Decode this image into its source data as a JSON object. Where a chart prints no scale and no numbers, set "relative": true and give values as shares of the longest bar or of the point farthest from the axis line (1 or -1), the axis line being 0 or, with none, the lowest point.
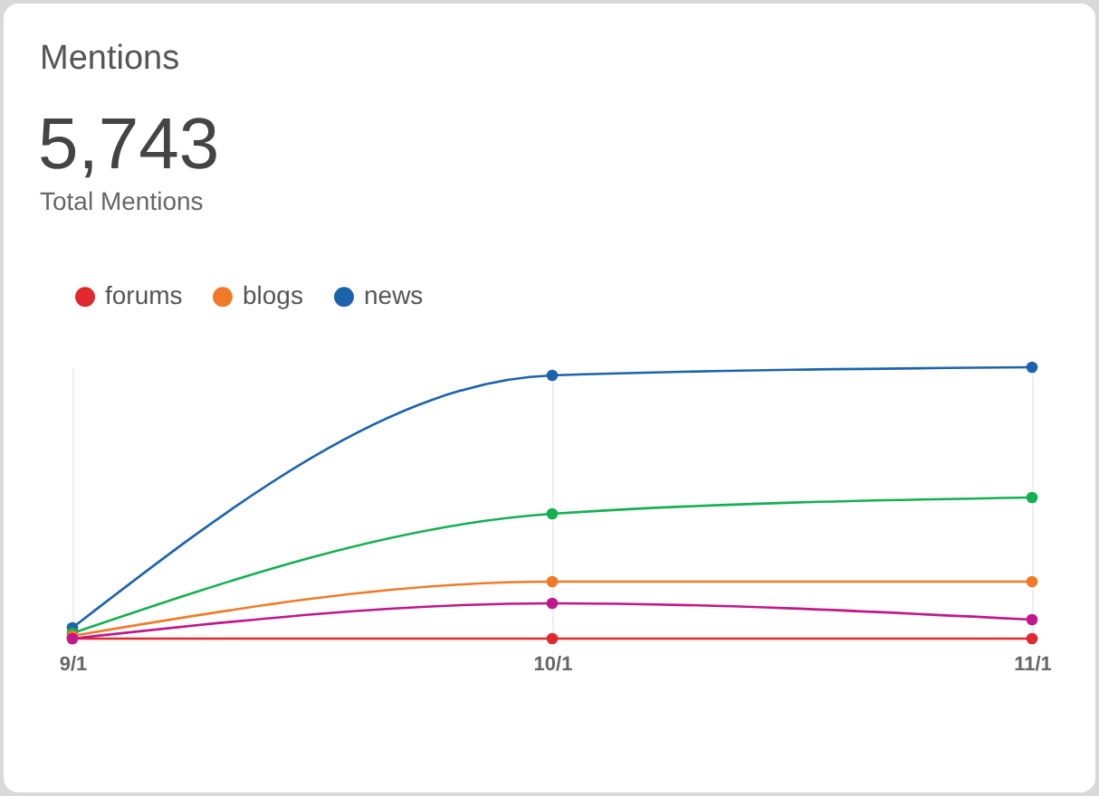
{
  "chart_data": {
    "type": "line",
    "title": "Mentions",
    "subtitle": "5,743",
    "annotations": [
      "Total Mentions"
    ],
    "categories": [
      "9/1",
      "10/1",
      "11/1"
    ],
    "relative": true,
    "grid": "x",
    "legend": "top left",
    "marker": "circle",
    "series": [
      {
        "color": "#c0178c",
        "values": [
          0,
          0.13,
          0.07
        ]
      },
      {
        "name": "forums",
        "color": "#e0282e",
        "values": [
          0,
          0,
          0
        ]
      },
      {
        "name": "blogs",
        "color": "#f07a28",
        "values": [
          0.01,
          0.21,
          0.21
        ]
      },
      {
        "color": "#13b04f",
        "values": [
          0.02,
          0.46,
          0.52
        ]
      },
      {
        "name": "news",
        "color": "#1c63ad",
        "values": [
          0.04,
          0.97,
          1
        ]
      }
    ]
  }
}
